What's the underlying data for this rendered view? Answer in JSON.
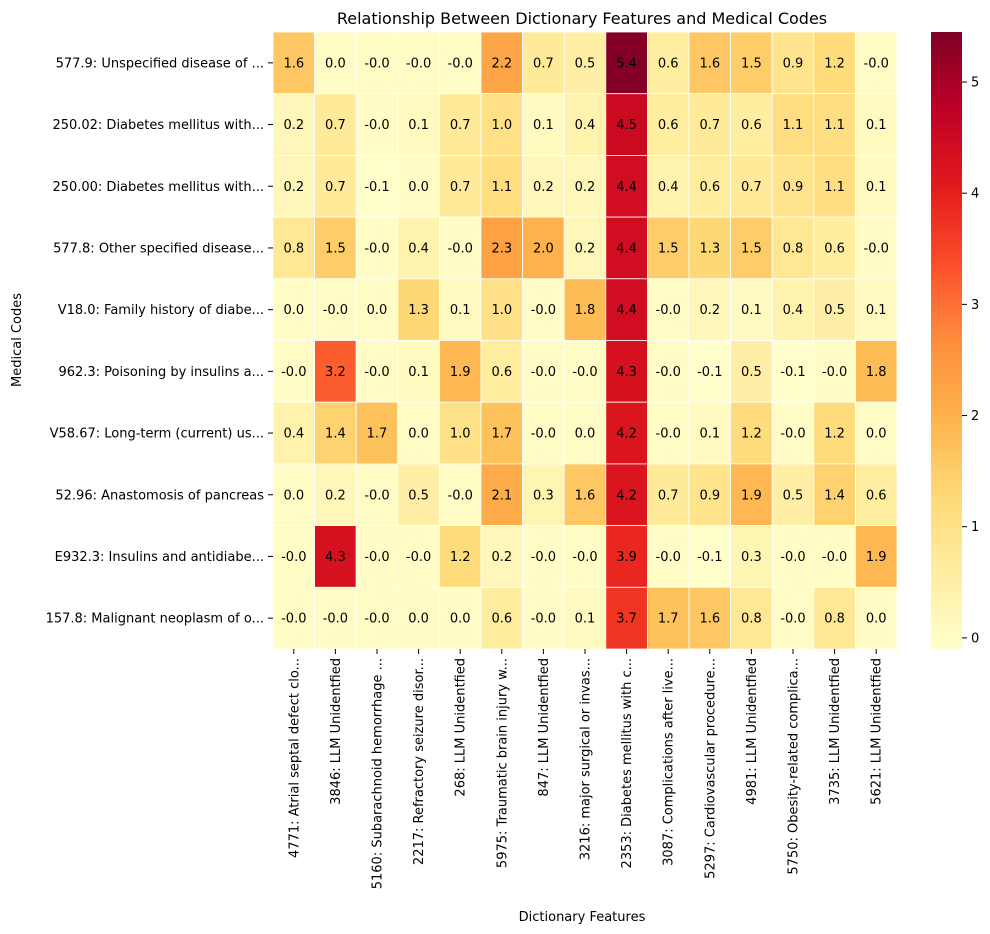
{
  "chart_data": {
    "type": "heatmap",
    "title": "Relationship Between Dictionary Features and Medical Codes",
    "xlabel": "Dictionary Features",
    "ylabel": "Medical Codes",
    "colormap": "YlOrRd",
    "colormap_stops": [
      "#ffffcc",
      "#ffeda0",
      "#fed976",
      "#feb24c",
      "#fd8d3c",
      "#fc4e2a",
      "#e31a1c",
      "#bd0026",
      "#800026"
    ],
    "vmin": -0.1,
    "vmax": 5.45,
    "colorbar_ticks": [
      "0",
      "1",
      "2",
      "3",
      "4",
      "5"
    ],
    "columns": [
      "4771: Atrial septal defect clo...",
      "3846: LLM Unidentfied",
      "5160: Subarachnoid hemorrhage ...",
      "2217: Refractory seizure disor...",
      "268: LLM Unidentfied",
      "5975: Traumatic brain injury w...",
      "847: LLM Unidentfied",
      "3216:  major surgical or invas...",
      "2353: Diabetes mellitus with c...",
      "3087: Complications after live...",
      "5297: Cardiovascular procedure...",
      "4981: LLM Unidentfied",
      "5750: Obesity-related complica...",
      "3735: LLM Unidentfied",
      "5621: LLM Unidentfied"
    ],
    "rows": [
      "577.9: Unspecified disease of ...",
      "250.02: Diabetes mellitus with...",
      "250.00: Diabetes mellitus with...",
      "577.8: Other specified disease...",
      "V18.0: Family history of diabe...",
      "962.3: Poisoning by insulins a...",
      "V58.67: Long-term (current) us...",
      "52.96: Anastomosis of pancreas",
      "E932.3: Insulins and antidiabe...",
      "157.8: Malignant neoplasm of o..."
    ],
    "values": [
      [
        "1.6",
        "0.0",
        "-0.0",
        "-0.0",
        "-0.0",
        "2.2",
        "0.7",
        "0.5",
        "5.4",
        "0.6",
        "1.6",
        "1.5",
        "0.9",
        "1.2",
        "-0.0"
      ],
      [
        "0.2",
        "0.7",
        "-0.0",
        "0.1",
        "0.7",
        "1.0",
        "0.1",
        "0.4",
        "4.5",
        "0.6",
        "0.7",
        "0.6",
        "1.1",
        "1.1",
        "0.1"
      ],
      [
        "0.2",
        "0.7",
        "-0.1",
        "0.0",
        "0.7",
        "1.1",
        "0.2",
        "0.2",
        "4.4",
        "0.4",
        "0.6",
        "0.7",
        "0.9",
        "1.1",
        "0.1"
      ],
      [
        "0.8",
        "1.5",
        "-0.0",
        "0.4",
        "-0.0",
        "2.3",
        "2.0",
        "0.2",
        "4.4",
        "1.5",
        "1.3",
        "1.5",
        "0.8",
        "0.6",
        "-0.0"
      ],
      [
        "0.0",
        "-0.0",
        "0.0",
        "1.3",
        "0.1",
        "1.0",
        "-0.0",
        "1.8",
        "4.4",
        "-0.0",
        "0.2",
        "0.1",
        "0.4",
        "0.5",
        "0.1"
      ],
      [
        "-0.0",
        "3.2",
        "-0.0",
        "0.1",
        "1.9",
        "0.6",
        "-0.0",
        "-0.0",
        "4.3",
        "-0.0",
        "-0.1",
        "0.5",
        "-0.1",
        "-0.0",
        "1.8"
      ],
      [
        "0.4",
        "1.4",
        "1.7",
        "0.0",
        "1.0",
        "1.7",
        "-0.0",
        "0.0",
        "4.2",
        "-0.0",
        "0.1",
        "1.2",
        "-0.0",
        "1.2",
        "0.0"
      ],
      [
        "0.0",
        "0.2",
        "-0.0",
        "0.5",
        "-0.0",
        "2.1",
        "0.3",
        "1.6",
        "4.2",
        "0.7",
        "0.9",
        "1.9",
        "0.5",
        "1.4",
        "0.6"
      ],
      [
        "-0.0",
        "4.3",
        "-0.0",
        "-0.0",
        "1.2",
        "0.2",
        "-0.0",
        "-0.0",
        "3.9",
        "-0.0",
        "-0.1",
        "0.3",
        "-0.0",
        "-0.0",
        "1.9"
      ],
      [
        "-0.0",
        "-0.0",
        "-0.0",
        "0.0",
        "0.0",
        "0.6",
        "-0.0",
        "0.1",
        "3.7",
        "1.7",
        "1.6",
        "0.8",
        "-0.0",
        "0.8",
        "0.0"
      ]
    ]
  }
}
